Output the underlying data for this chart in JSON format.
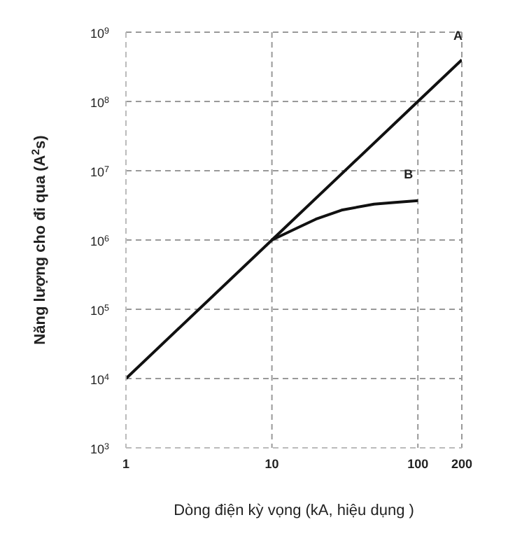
{
  "chart_data": {
    "type": "line",
    "xlabel": "Dòng điện kỳ vọng (kA, hiệu dụng )",
    "ylabel": "Năng lượng cho đi qua (A$^{2}$s)",
    "log": "xy",
    "grid": true,
    "marker": "none",
    "line_style": "solid",
    "xlim": [
      1,
      200
    ],
    "xticks": [
      1,
      10,
      100,
      200
    ],
    "ylim": [
      1000,
      1000000000
    ],
    "yticks": [
      {
        "value": 1000,
        "label": "10$^{3}$"
      },
      {
        "value": 10000,
        "label": "10$^{4}$"
      },
      {
        "value": 100000,
        "label": "10$^{5}$"
      },
      {
        "value": 1000000,
        "label": "10$^{6}$"
      },
      {
        "value": 10000000,
        "label": "10$^{7}$"
      },
      {
        "value": 100000000,
        "label": "10$^{8}$"
      },
      {
        "value": 1000000000,
        "label": "10$^{9}$"
      }
    ],
    "series": [
      {
        "name": "A",
        "color": "#111111",
        "x": [
          1,
          10,
          100,
          200
        ],
        "values": [
          10000,
          1000000,
          100000000,
          400000000
        ]
      },
      {
        "name": "B",
        "color": "#111111",
        "x": [
          10,
          15,
          20,
          30,
          50,
          70,
          100
        ],
        "values": [
          1000000,
          1500000,
          2000000,
          2700000,
          3300000,
          3500000,
          3700000
        ]
      }
    ]
  }
}
